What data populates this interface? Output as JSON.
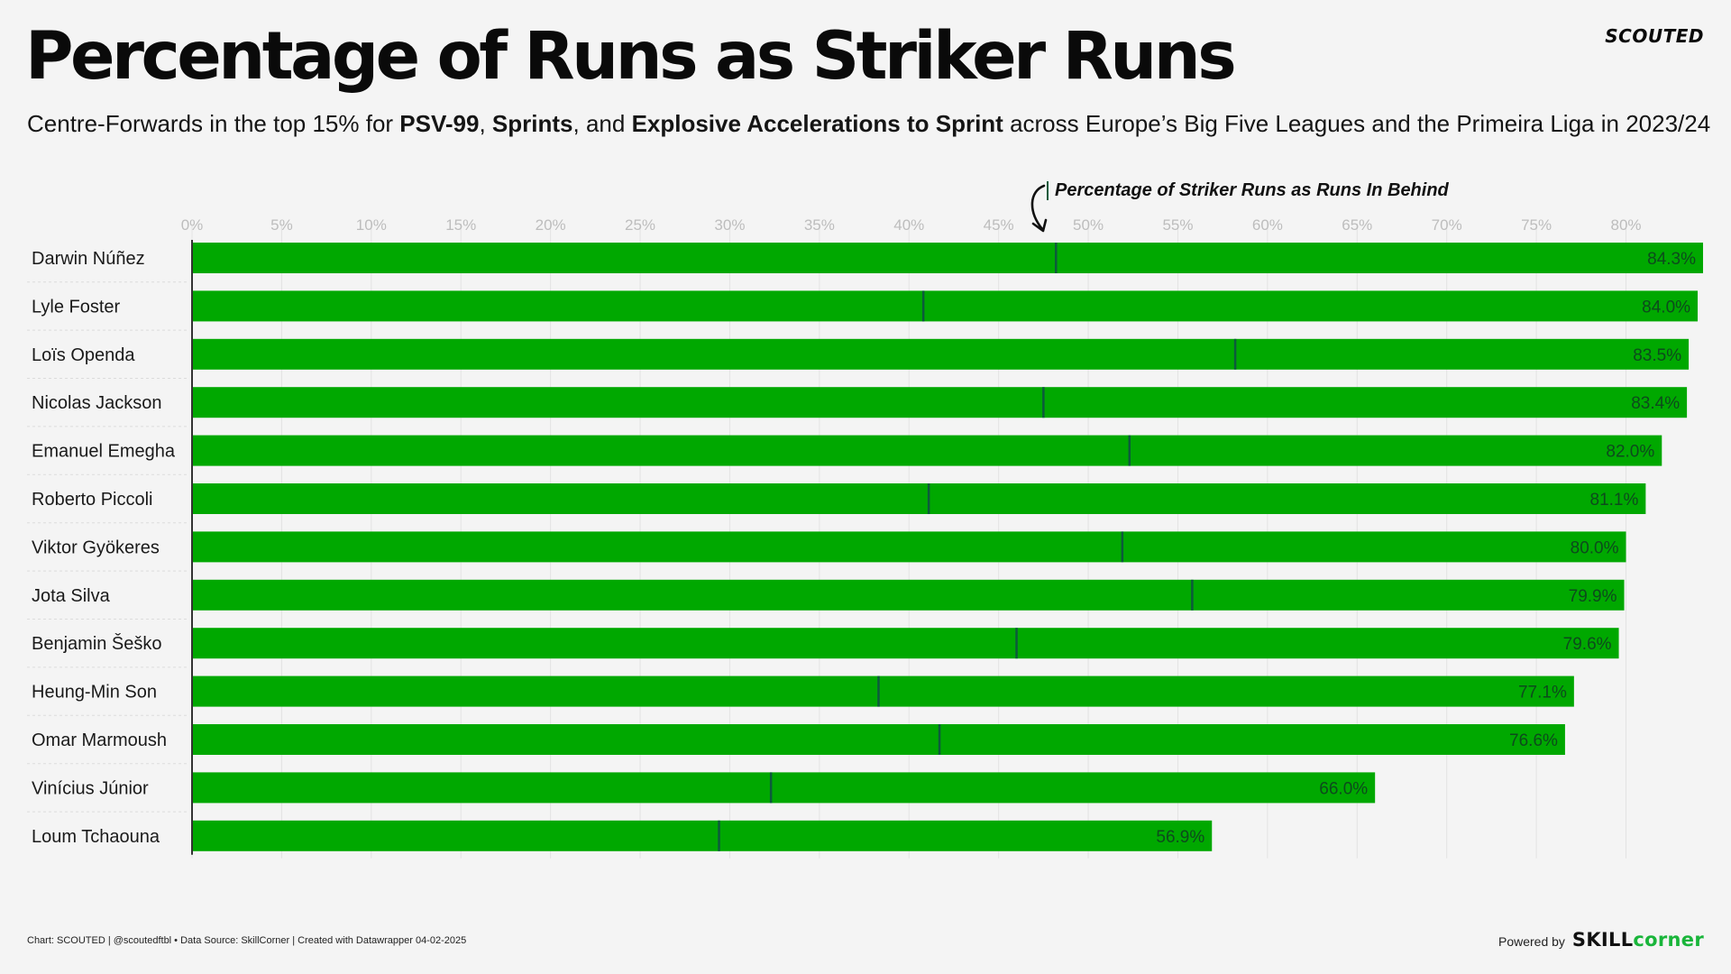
{
  "header": {
    "title": "Percentage of Runs as Striker Runs",
    "subtitle_parts": [
      {
        "text": "Centre-Forwards in the top 15% for ",
        "bold": false
      },
      {
        "text": "PSV-99",
        "bold": true
      },
      {
        "text": ", ",
        "bold": false
      },
      {
        "text": "Sprints",
        "bold": true
      },
      {
        "text": ", and ",
        "bold": false
      },
      {
        "text": "Explosive Accelerations to Sprint",
        "bold": true
      },
      {
        "text": " across Europe’s Big Five Leagues and the Primeira Liga in 2023/24",
        "bold": false
      }
    ],
    "brand": "SCOUTED"
  },
  "annotation": {
    "label": "Percentage of Striker Runs as Runs In Behind",
    "arrow_icon": "curved-arrow-down-icon"
  },
  "chart_data": {
    "type": "bar",
    "orientation": "horizontal",
    "categories": [
      "Darwin Núñez",
      "Lyle Foster",
      "Loïs Openda",
      "Nicolas Jackson",
      "Emanuel Emegha",
      "Roberto Piccoli",
      "Viktor Gyökeres",
      "Jota Silva",
      "Benjamin Šeško",
      "Heung-Min Son",
      "Omar Marmoush",
      "Vinícius Júnior",
      "Loum Tchaouna"
    ],
    "series": [
      {
        "values": [
          84.3,
          84.0,
          83.5,
          83.4,
          82.0,
          81.1,
          80.0,
          79.9,
          79.6,
          77.1,
          76.6,
          66.0,
          56.9
        ],
        "labels": [
          "84.3%",
          "84.0%",
          "83.5%",
          "83.4%",
          "82.0%",
          "81.1%",
          "80.0%",
          "79.9%",
          "79.6%",
          "77.1%",
          "76.6%",
          "66.0%",
          "56.9%"
        ]
      },
      {
        "name": "Percentage of Striker Runs as Runs In Behind",
        "values": [
          48.2,
          40.8,
          58.2,
          47.5,
          52.3,
          41.1,
          51.9,
          55.8,
          46.0,
          38.3,
          41.7,
          32.3,
          29.4
        ]
      }
    ],
    "x_ticks": [
      "0%",
      "5%",
      "10%",
      "15%",
      "20%",
      "25%",
      "30%",
      "35%",
      "40%",
      "45%",
      "50%",
      "55%",
      "60%",
      "65%",
      "70%",
      "75%",
      "80%"
    ],
    "x_tick_values": [
      0,
      5,
      10,
      15,
      20,
      25,
      30,
      35,
      40,
      45,
      50,
      55,
      60,
      65,
      70,
      75,
      80
    ],
    "xlim": [
      0,
      84.3
    ],
    "grid": true,
    "colors": {
      "bar": "#00a800",
      "marker": "#0c5a3c",
      "bar_label": "#0d4a1c",
      "tick_label": "#bdbdbd",
      "grid": "#e3e3e3"
    }
  },
  "footer": {
    "credit": "Chart: SCOUTED | @scoutedftbl • Data Source: SkillCorner | Created with Datawrapper 04-02-2025",
    "powered_by": "Powered by",
    "logo_part1": "SKILL",
    "logo_part2": "corner"
  }
}
